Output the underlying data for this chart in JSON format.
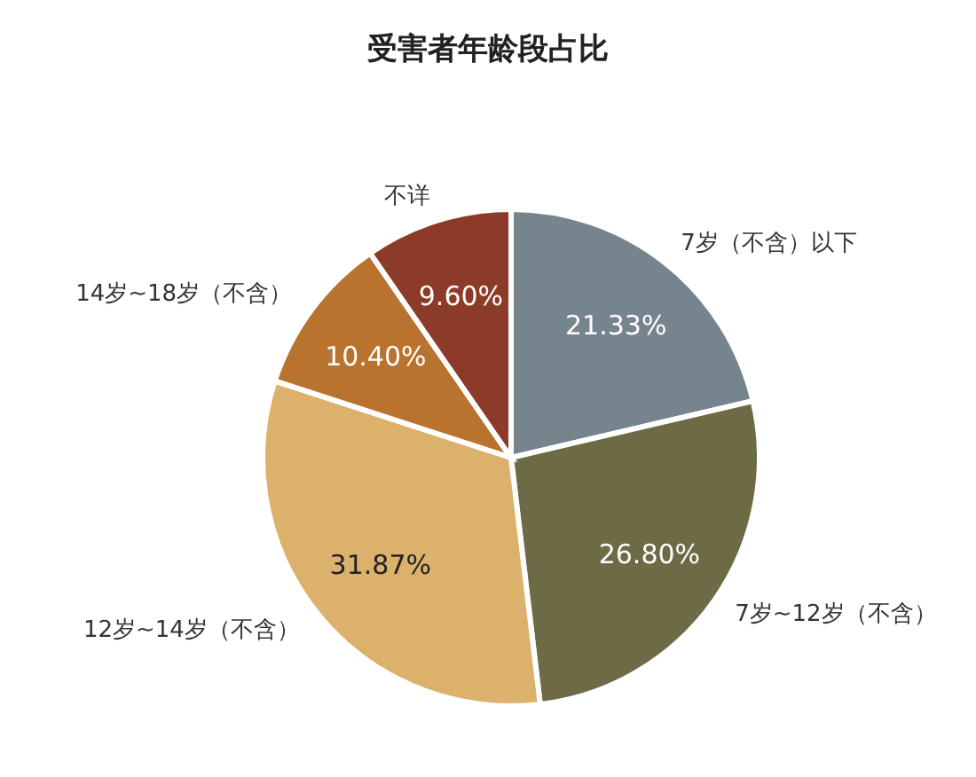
{
  "chart_data": {
    "type": "pie",
    "title": "受害者年龄段占比",
    "categories": [
      "7岁（不含）以下",
      "7岁~12岁（不含）",
      "12岁~14岁（不含）",
      "14岁~18岁（不含）",
      "不详"
    ],
    "values": [
      21.33,
      26.8,
      31.87,
      10.4,
      9.6
    ],
    "value_labels": [
      "21.33%",
      "26.80%",
      "31.87%",
      "10.40%",
      "9.60%"
    ],
    "colors": [
      "#76848e",
      "#6c6b45",
      "#dcb16c",
      "#b8742f",
      "#8c3b29"
    ]
  }
}
